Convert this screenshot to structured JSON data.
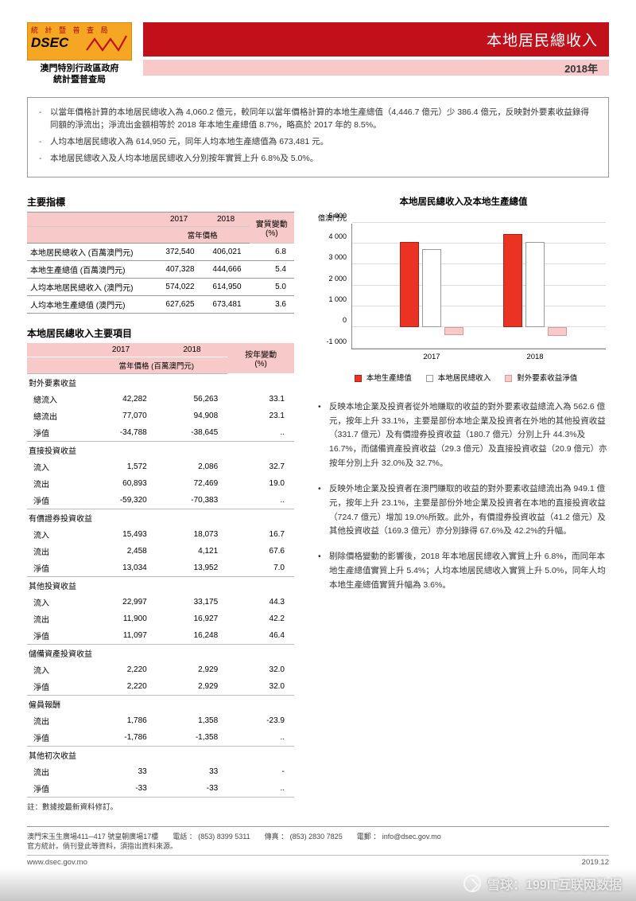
{
  "header": {
    "logo_top": "統 計 暨 普 查 局",
    "logo_text": "DSEC",
    "logo_sub1": "澳門特別行政區政府",
    "logo_sub2": "統計暨普查局",
    "title": "本地居民總收入",
    "year": "2018年"
  },
  "summary": {
    "items": [
      "以當年價格計算的本地居民總收入為 4,060.2 億元，較同年以當年價格計算的本地生產總值（4,446.7 億元）少 386.4 億元，反映對外要素收益錄得同額的淨流出；淨流出金額相等於 2018 年本地生產總值 8.7%，略高於 2017 年的 8.5%。",
      "人均本地居民總收入為 614,950 元，同年人均本地生產總值為 673,481 元。",
      "本地居民總收入及人均本地居民總收入分別按年實質上升 6.8%及 5.0%。"
    ]
  },
  "table1": {
    "title": "主要指標",
    "h_2017": "2017",
    "h_2018": "2018",
    "h_change": "實質變動",
    "h_price": "當年價格",
    "h_pct": "(%)",
    "rows": [
      {
        "label": "本地居民總收入 (百萬澳門元)",
        "v17": "372,540",
        "v18": "406,021",
        "chg": "6.8"
      },
      {
        "label": "本地生產總值 (百萬澳門元)",
        "v17": "407,328",
        "v18": "444,666",
        "chg": "5.4"
      },
      {
        "label": "人均本地居民總收入 (澳門元)",
        "v17": "574,022",
        "v18": "614,950",
        "chg": "5.0"
      },
      {
        "label": "人均本地生產總值 (澳門元)",
        "v17": "627,625",
        "v18": "673,481",
        "chg": "3.6"
      }
    ]
  },
  "table2": {
    "title": "本地居民總收入主要項目",
    "h_2017": "2017",
    "h_2018": "2018",
    "h_change": "按年變動",
    "h_price": "當年價格 (百萬澳門元)",
    "h_pct": "(%)",
    "groups": [
      {
        "name": "對外要素收益",
        "rows": [
          {
            "label": "總流入",
            "v17": "42,282",
            "v18": "56,263",
            "chg": "33.1"
          },
          {
            "label": "總流出",
            "v17": "77,070",
            "v18": "94,908",
            "chg": "23.1"
          },
          {
            "label": "淨值",
            "v17": "-34,788",
            "v18": "-38,645",
            "chg": ".."
          }
        ]
      },
      {
        "name": "直接投資收益",
        "rows": [
          {
            "label": "流入",
            "v17": "1,572",
            "v18": "2,086",
            "chg": "32.7"
          },
          {
            "label": "流出",
            "v17": "60,893",
            "v18": "72,469",
            "chg": "19.0"
          },
          {
            "label": "淨值",
            "v17": "-59,320",
            "v18": "-70,383",
            "chg": ".."
          }
        ]
      },
      {
        "name": "有價證券投資收益",
        "rows": [
          {
            "label": "流入",
            "v17": "15,493",
            "v18": "18,073",
            "chg": "16.7"
          },
          {
            "label": "流出",
            "v17": "2,458",
            "v18": "4,121",
            "chg": "67.6"
          },
          {
            "label": "淨值",
            "v17": "13,034",
            "v18": "13,952",
            "chg": "7.0"
          }
        ]
      },
      {
        "name": "其他投資收益",
        "rows": [
          {
            "label": "流入",
            "v17": "22,997",
            "v18": "33,175",
            "chg": "44.3"
          },
          {
            "label": "流出",
            "v17": "11,900",
            "v18": "16,927",
            "chg": "42.2"
          },
          {
            "label": "淨值",
            "v17": "11,097",
            "v18": "16,248",
            "chg": "46.4"
          }
        ]
      },
      {
        "name": "儲備資產投資收益",
        "rows": [
          {
            "label": "流入",
            "v17": "2,220",
            "v18": "2,929",
            "chg": "32.0"
          },
          {
            "label": "淨值",
            "v17": "2,220",
            "v18": "2,929",
            "chg": "32.0"
          }
        ]
      },
      {
        "name": "僱員報酬",
        "rows": [
          {
            "label": "流出",
            "v17": "1,786",
            "v18": "1,358",
            "chg": "-23.9"
          },
          {
            "label": "淨值",
            "v17": "-1,786",
            "v18": "-1,358",
            "chg": ".."
          }
        ]
      },
      {
        "name": "其他初次收益",
        "rows": [
          {
            "label": "流出",
            "v17": "33",
            "v18": "33",
            "chg": "-"
          },
          {
            "label": "淨值",
            "v17": "-33",
            "v18": "-33",
            "chg": ".."
          }
        ]
      }
    ],
    "note": "註：數據按最新資料修訂。"
  },
  "chart": {
    "title": "本地居民總收入及本地生產總值",
    "y_unit": "億澳門元",
    "y_ticks": [
      "-1 000",
      "0",
      "1 000",
      "2 000",
      "3 000",
      "4 000",
      "5 000"
    ],
    "y_min": -1000,
    "y_max": 5000,
    "x_labels": [
      "2017",
      "2018"
    ],
    "series": [
      {
        "name": "本地生產總值",
        "color": "#ea3323",
        "type": "red",
        "values": [
          4073,
          4447
        ]
      },
      {
        "name": "本地居民總收入",
        "color": "#ffffff",
        "type": "wht",
        "values": [
          3725,
          4060
        ]
      },
      {
        "name": "對外要素收益淨值",
        "color": "#f7c9c9",
        "type": "pnk",
        "values": [
          -348,
          -386
        ]
      }
    ],
    "legend": [
      "本地生產總值",
      "本地居民總收入",
      "對外要素收益淨值"
    ]
  },
  "bullets": [
    "反映本地企業及投資者從外地賺取的收益的對外要素收益總流入為 562.6 億元，按年上升 33.1%，主要是部份本地企業及投資者在外地的其他投資收益（331.7 億元）及有價證券投資收益（180.7 億元）分別上升 44.3%及 16.7%，而儲備資產投資收益（29.3 億元）及直接投資收益（20.9 億元）亦按年分別上升 32.0%及 32.7%。",
    "反映外地企業及投資者在澳門賺取的收益的對外要素收益總流出為 949.1 億元，按年上升 23.1%，主要是部份外地企業及投資者在本地的直接投資收益（724.7 億元）增加 19.0%所致。此外，有價證券投資收益（41.2 億元）及其他投資收益（169.3 億元）亦分別錄得 67.6%及 42.2%的升幅。",
    "剔除價格變動的影響後，2018 年本地居民總收入實質上升 6.8%，而同年本地生產總值實質上升 5.4%；人均本地居民總收入實質上升 5.0%，同年人均本地生產總值實質升幅為 3.6%。"
  ],
  "footer": {
    "addr": "澳門宋玉生廣場411─417 號皇朝廣場17樓　　電話 ： (853) 8399 5311　　傳真 ： (853) 2830 7825　　電郵 ： info@dsec.gov.mo",
    "addr2": "官方統計。倘刊登此等資料，須指出資料來源。",
    "url": "www.dsec.gov.mo",
    "date": "2019.12"
  },
  "watermark": "雪球：199IT互联网数据"
}
